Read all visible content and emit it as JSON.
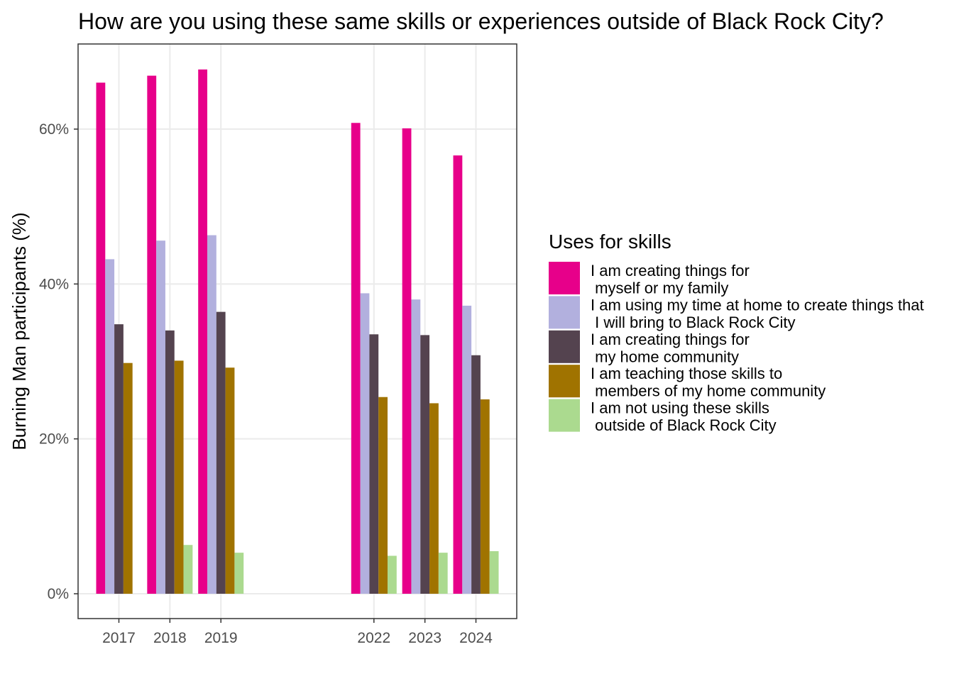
{
  "chart_data": {
    "type": "bar",
    "title": "How are you using these same skills or experiences outside of Black Rock City?",
    "xlabel": "",
    "ylabel": "Burning Man participants (%)",
    "ylim": [
      0,
      70
    ],
    "y_ticks": [
      0,
      20,
      40,
      60
    ],
    "y_tick_labels": [
      "0%",
      "20%",
      "40%",
      "60%"
    ],
    "x_axis_range": [
      2016.2,
      2024.8
    ],
    "categories": [
      "2017",
      "2018",
      "2019",
      "2022",
      "2023",
      "2024"
    ],
    "grid": true,
    "legend": {
      "title": "Uses for skills",
      "placement": "right"
    },
    "series": [
      {
        "name": "I am creating things for\n myself or my family",
        "color": "#E7008A",
        "values": [
          66.0,
          66.9,
          67.7,
          60.8,
          60.1,
          56.6
        ]
      },
      {
        "name": "I am using my time at home to create things that\n I will bring to Black Rock City",
        "color": "#B2B0DE",
        "values": [
          43.2,
          45.6,
          46.3,
          38.8,
          38.0,
          37.2
        ]
      },
      {
        "name": "I am creating things for\n my home community",
        "color": "#54434F",
        "values": [
          34.8,
          34.0,
          36.4,
          33.5,
          33.4,
          30.8
        ]
      },
      {
        "name": "I am teaching those skills to\n members of my home community",
        "color": "#A07300",
        "values": [
          29.8,
          30.1,
          29.2,
          25.4,
          24.6,
          25.1
        ]
      },
      {
        "name": "I am not using these skills\n outside of Black Rock City",
        "color": "#ABDA8F",
        "values": [
          null,
          6.3,
          5.3,
          4.9,
          5.3,
          5.5
        ]
      }
    ]
  }
}
